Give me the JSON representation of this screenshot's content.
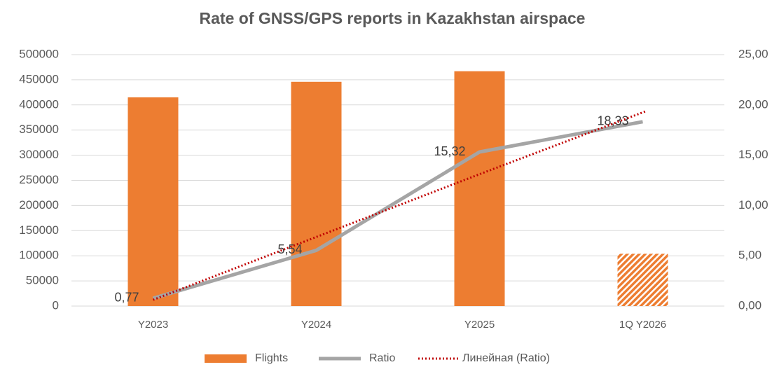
{
  "chart_data": {
    "type": "bar",
    "title": "Rate of GNSS/GPS reports in Kazakhstan airspace",
    "categories": [
      "Y2023",
      "Y2024",
      "Y2025",
      "1Q Y2026"
    ],
    "series": [
      {
        "name": "Flights",
        "type": "bar",
        "color": "#ed7d31",
        "values": [
          415000,
          446000,
          467000,
          104000
        ],
        "hatched": [
          false,
          false,
          false,
          true
        ]
      },
      {
        "name": "Ratio",
        "type": "line",
        "axis": "y2",
        "color": "#a5a5a5",
        "values": [
          0.77,
          5.54,
          15.32,
          18.33
        ],
        "value_labels": [
          "0,77",
          "5,54",
          "15,32",
          "18,33"
        ]
      },
      {
        "name": "Линейная (Ratio)",
        "type": "line",
        "axis": "y2",
        "color": "#c00000",
        "dotted": true,
        "values": [
          0.62,
          6.87,
          13.11,
          19.36
        ]
      }
    ],
    "ylim": [
      0,
      500000
    ],
    "yticks": [
      0,
      50000,
      100000,
      150000,
      200000,
      250000,
      300000,
      350000,
      400000,
      450000,
      500000
    ],
    "y2lim": [
      0,
      25
    ],
    "y2ticks": [
      {
        "value": 0,
        "label": "0,00"
      },
      {
        "value": 5,
        "label": "5,00"
      },
      {
        "value": 10,
        "label": "10,00"
      },
      {
        "value": 15,
        "label": "15,00"
      },
      {
        "value": 20,
        "label": "20,00"
      },
      {
        "value": 25,
        "label": "25,00"
      }
    ],
    "grid": true,
    "legend": "bottom"
  }
}
